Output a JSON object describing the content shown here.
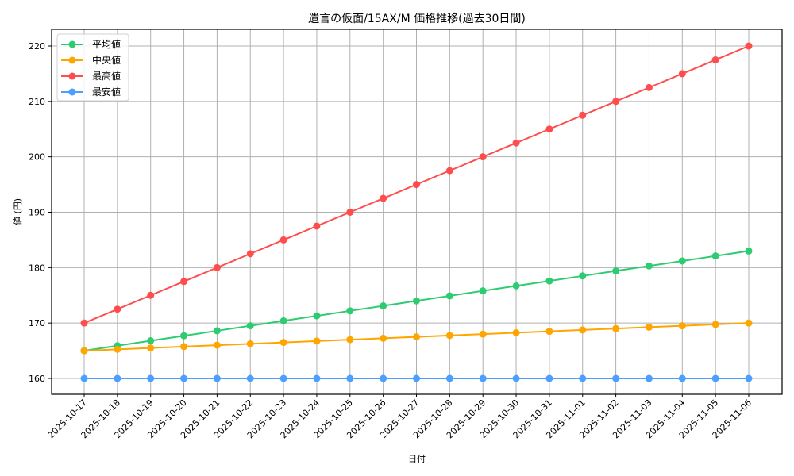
{
  "chart_data": {
    "type": "line",
    "title": "遺言の仮面/15AX/M 価格推移(過去30日間)",
    "xlabel": "日付",
    "ylabel": "値 (円)",
    "ylim": [
      157,
      223
    ],
    "yticks": [
      160,
      170,
      180,
      190,
      200,
      210,
      220
    ],
    "grid": true,
    "legend_position": "upper left",
    "categories": [
      "2025-10-17",
      "2025-10-18",
      "2025-10-19",
      "2025-10-20",
      "2025-10-21",
      "2025-10-22",
      "2025-10-23",
      "2025-10-24",
      "2025-10-25",
      "2025-10-26",
      "2025-10-27",
      "2025-10-28",
      "2025-10-29",
      "2025-10-30",
      "2025-10-31",
      "2025-11-01",
      "2025-11-02",
      "2025-11-03",
      "2025-11-04",
      "2025-11-05",
      "2025-11-06"
    ],
    "series": [
      {
        "name": "平均値",
        "color": "#2ecc71",
        "values": [
          165,
          165.9,
          166.8,
          167.7,
          168.6,
          169.5,
          170.4,
          171.3,
          172.2,
          173.1,
          174,
          174.9,
          175.8,
          176.7,
          177.6,
          178.5,
          179.4,
          180.3,
          181.2,
          182.1,
          183
        ]
      },
      {
        "name": "中央値",
        "color": "#ffa500",
        "values": [
          165,
          165.25,
          165.5,
          165.75,
          166,
          166.25,
          166.5,
          166.75,
          167,
          167.25,
          167.5,
          167.75,
          168,
          168.25,
          168.5,
          168.75,
          169,
          169.25,
          169.5,
          169.75,
          170
        ]
      },
      {
        "name": "最高値",
        "color": "#ff4d4d",
        "values": [
          170,
          172.5,
          175,
          177.5,
          180,
          182.5,
          185,
          187.5,
          190,
          192.5,
          195,
          197.5,
          200,
          202.5,
          205,
          207.5,
          210,
          212.5,
          215,
          217.5,
          220
        ]
      },
      {
        "name": "最安値",
        "color": "#4d9fff",
        "values": [
          160,
          160,
          160,
          160,
          160,
          160,
          160,
          160,
          160,
          160,
          160,
          160,
          160,
          160,
          160,
          160,
          160,
          160,
          160,
          160,
          160
        ]
      }
    ]
  }
}
